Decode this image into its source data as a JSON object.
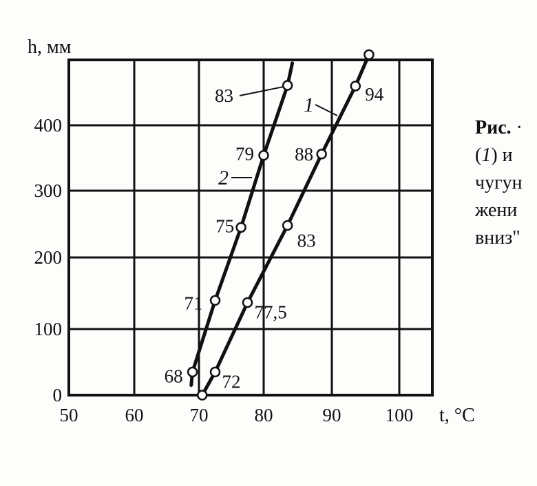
{
  "chart_data": {
    "type": "line",
    "xlabel": "t, °C",
    "ylabel": "h, мм",
    "xlim": [
      50,
      105
    ],
    "ylim": [
      0,
      510
    ],
    "xticks": [
      50,
      60,
      70,
      80,
      90,
      100
    ],
    "yticks": [
      0,
      100,
      200,
      300,
      400
    ],
    "grid": true,
    "series": [
      {
        "name": "1",
        "points": [
          {
            "x": 70.5,
            "y": 0,
            "label": ""
          },
          {
            "x": 72.5,
            "y": 35,
            "label": "72"
          },
          {
            "x": 77.5,
            "y": 137,
            "label": "77,5"
          },
          {
            "x": 83.5,
            "y": 248,
            "label": "83"
          },
          {
            "x": 88.5,
            "y": 356,
            "label": "88"
          },
          {
            "x": 93.5,
            "y": 460,
            "label": "94"
          },
          {
            "x": 95.5,
            "y": 508,
            "label": ""
          }
        ]
      },
      {
        "name": "2",
        "points": [
          {
            "x": 69,
            "y": 35,
            "label": "68"
          },
          {
            "x": 72.5,
            "y": 140,
            "label": "71"
          },
          {
            "x": 76.5,
            "y": 245,
            "label": "75"
          },
          {
            "x": 80,
            "y": 354,
            "label": "79"
          },
          {
            "x": 83.5,
            "y": 461,
            "label": "83"
          }
        ]
      }
    ]
  },
  "caption": {
    "title": "Рис.",
    "title_rest": " ·",
    "line2_series": "1",
    "line2_rest": ") и",
    "line3": "чугун",
    "line4": "жени",
    "line5": "вниз\""
  },
  "colors": {
    "ink": "#111111",
    "paper": "#fdfdfb"
  }
}
